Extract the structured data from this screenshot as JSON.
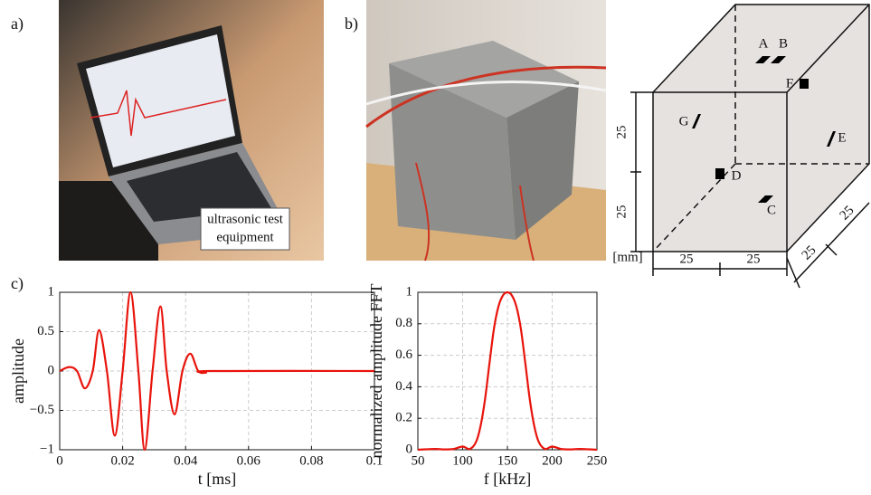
{
  "panel_labels": [
    "a)",
    "b)",
    "c)"
  ],
  "photo_a": {
    "caption": [
      "ultrasonic test",
      "equipment"
    ]
  },
  "diagram": {
    "sensors": [
      "A",
      "B",
      "C",
      "D",
      "E",
      "F",
      "G"
    ],
    "unit": "[mm]",
    "dimensions": [
      25,
      25,
      25,
      25,
      25,
      25
    ]
  },
  "chart_data": [
    {
      "type": "line",
      "x_label": "t [ms]",
      "y_label": "amplitude",
      "color": "#e8140c",
      "grid": true,
      "x": [
        0,
        0.003,
        0.0055,
        0.008,
        0.0105,
        0.0125,
        0.015,
        0.0175,
        0.02,
        0.0225,
        0.025,
        0.027,
        0.0295,
        0.032,
        0.034,
        0.0365,
        0.039,
        0.0415,
        0.044,
        0.0465,
        0.048,
        0.1
      ],
      "values": [
        0,
        0.05,
        0,
        -0.22,
        0,
        0.52,
        0,
        -0.82,
        0,
        1.0,
        0,
        -1.0,
        0,
        0.82,
        0,
        -0.55,
        0,
        0.22,
        0,
        -0.02,
        0,
        0
      ],
      "xlim": [
        0,
        0.1
      ],
      "ylim": [
        -1,
        1
      ],
      "xticks": [
        0,
        0.02,
        0.04,
        0.06,
        0.08,
        0.1
      ],
      "yticks": [
        {
          "value": -1,
          "label": "−1"
        },
        {
          "value": -0.5,
          "label": "−0.5"
        },
        0,
        0.5,
        1
      ]
    },
    {
      "type": "line",
      "x_label": "f [kHz]",
      "y_label": "normalized amplitude FFT",
      "color": "#e8140c",
      "grid": true,
      "x": [
        50,
        60,
        70,
        80,
        90,
        100,
        108,
        115,
        120,
        125,
        130,
        135,
        140,
        145,
        150,
        155,
        160,
        165,
        170,
        175,
        180,
        185,
        192,
        200,
        210,
        220,
        230,
        240,
        250
      ],
      "values": [
        0,
        0.003,
        0.005,
        0.002,
        0.005,
        0.02,
        0.005,
        0.05,
        0.15,
        0.32,
        0.55,
        0.77,
        0.91,
        0.98,
        1.0,
        0.98,
        0.91,
        0.77,
        0.55,
        0.32,
        0.15,
        0.05,
        0.005,
        0.02,
        0.005,
        0.002,
        0.005,
        0.003,
        0
      ],
      "xlim": [
        50,
        250
      ],
      "ylim": [
        0,
        1
      ],
      "xticks": [
        50,
        100,
        150,
        200,
        250
      ],
      "yticks": [
        0,
        0.2,
        0.4,
        0.6,
        0.8,
        1
      ]
    }
  ]
}
